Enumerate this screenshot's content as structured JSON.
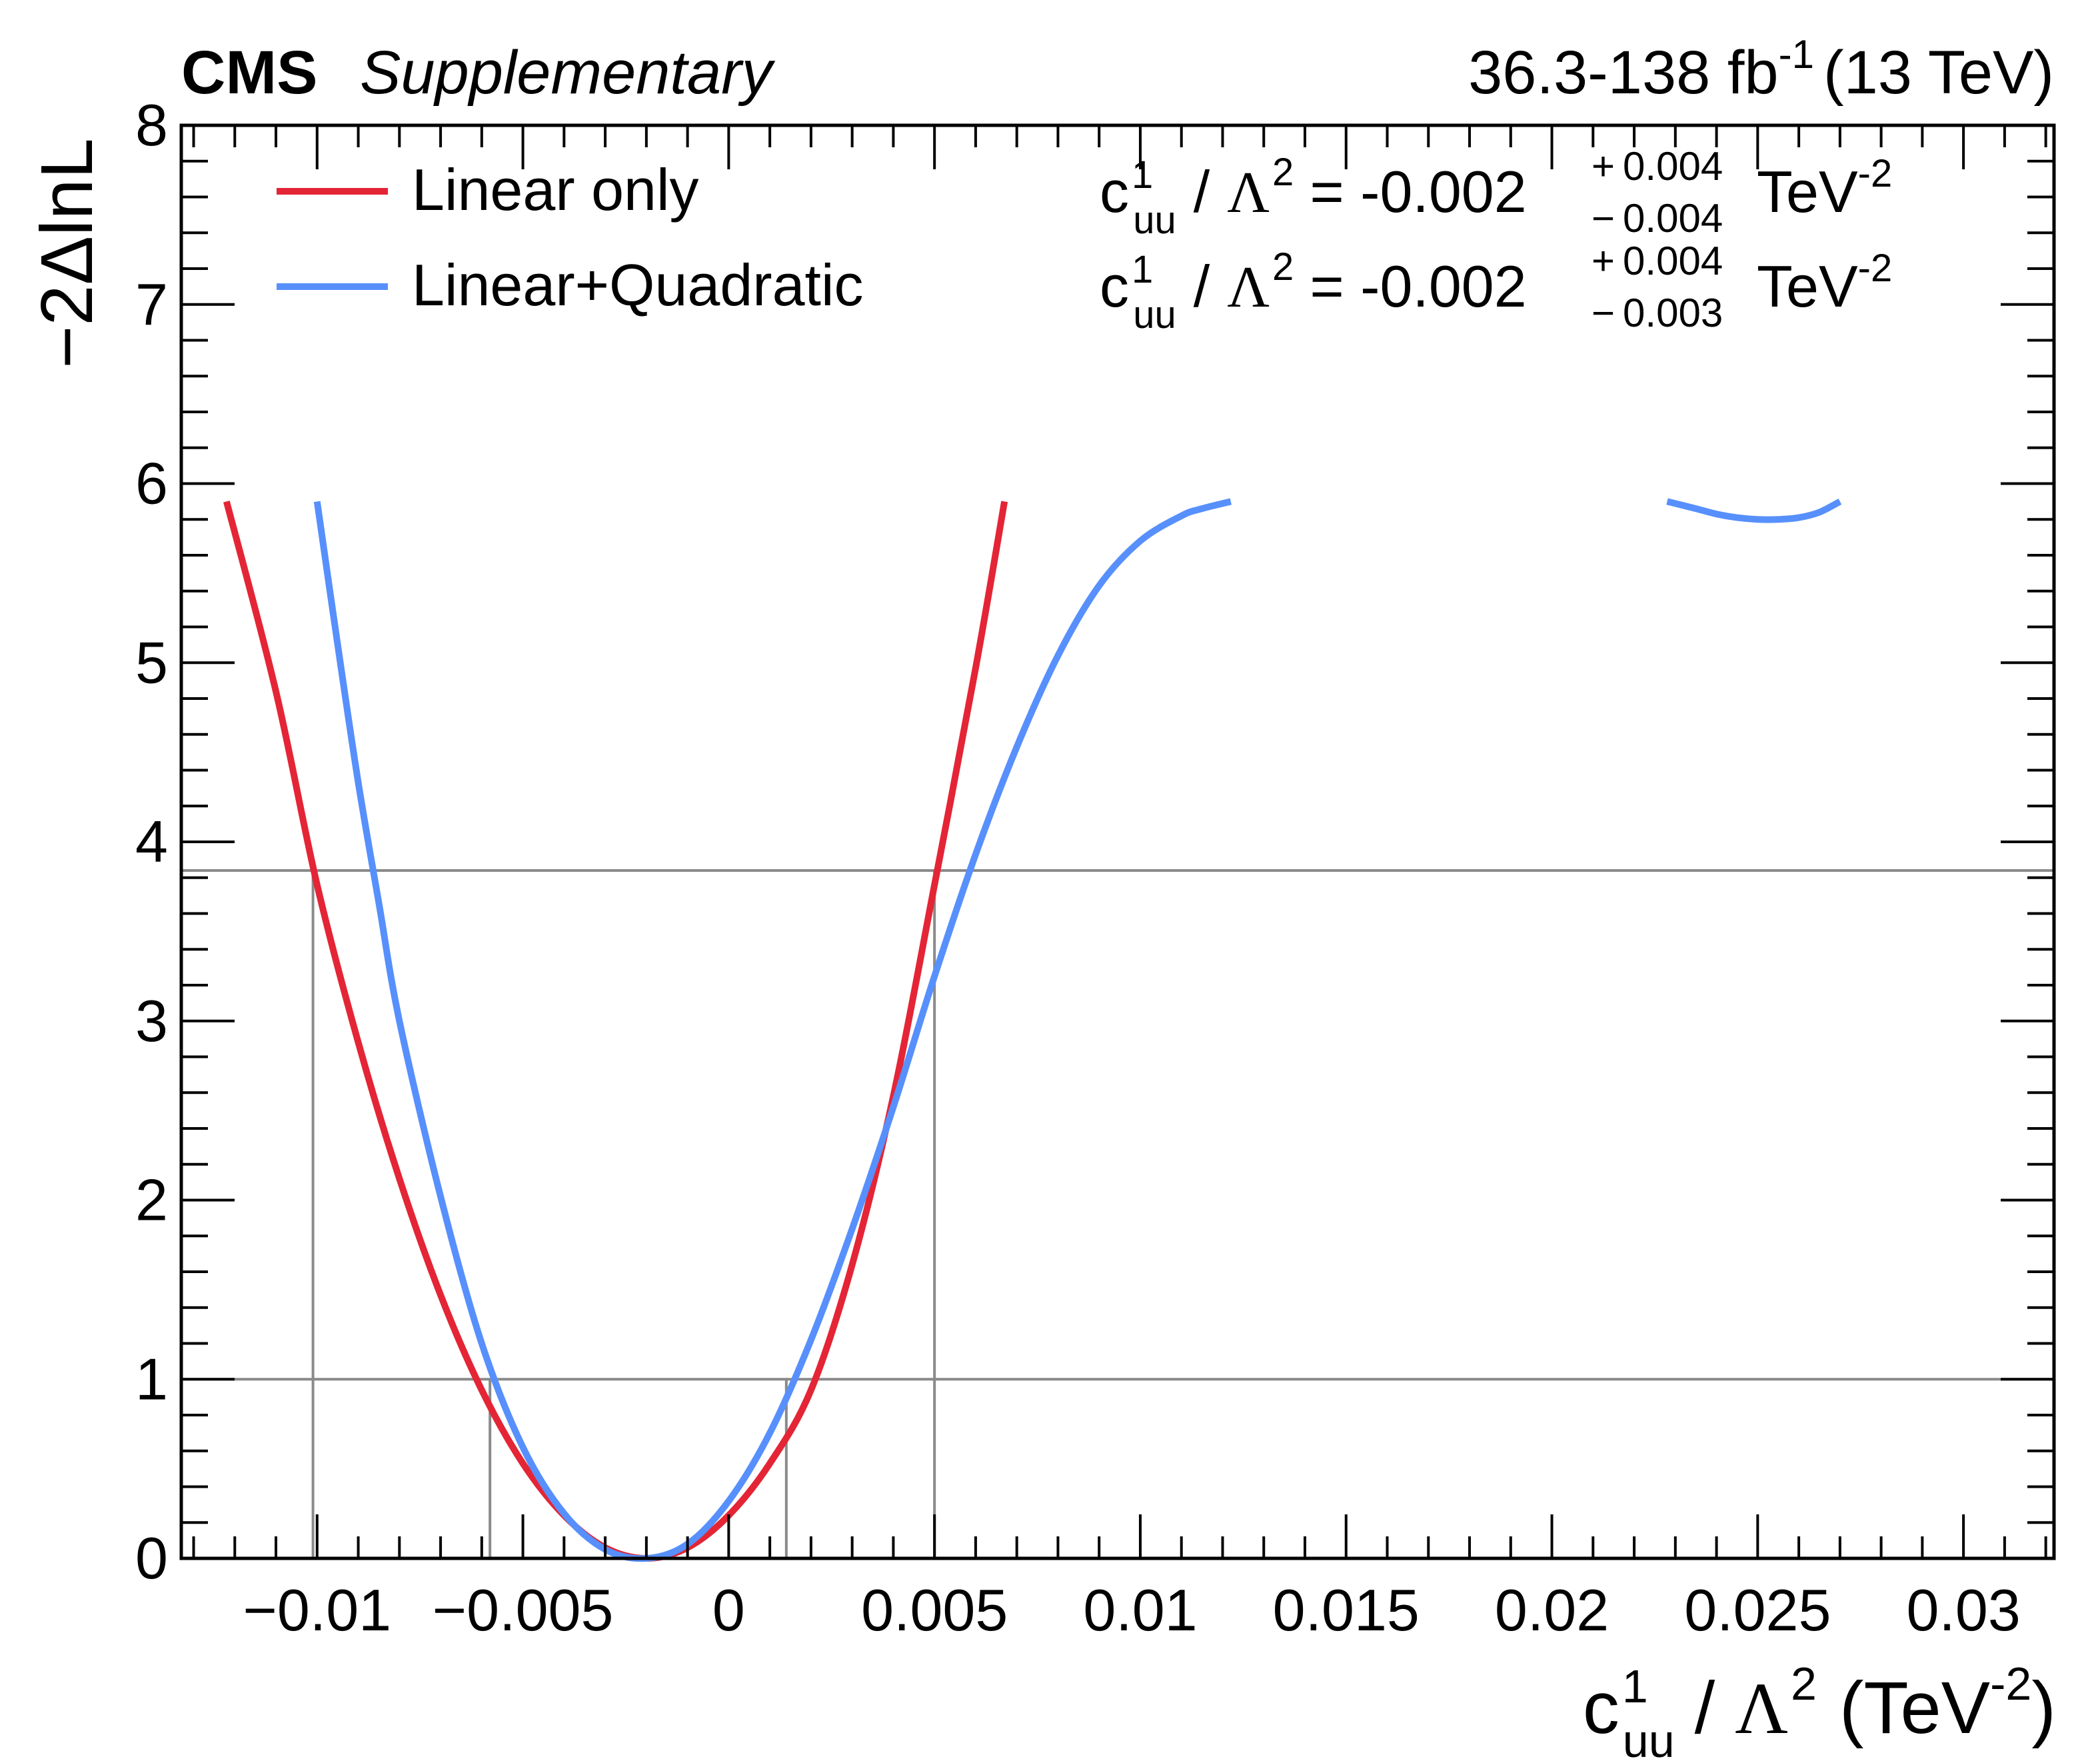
{
  "chart_data": {
    "type": "line",
    "header": {
      "experiment": "CMS",
      "tag": "Supplementary",
      "lumi_prefix": "36.3-138 fb",
      "lumi_exp": "-1",
      "energy": "(13 TeV)"
    },
    "ylabel": "−2ΔlnL",
    "xlabel": {
      "c": "c",
      "sup": "1",
      "sub": "uu",
      "slash": "/",
      "lambda": "Λ",
      "lambda_sup": "2",
      "unit_open": "(TeV",
      "unit_sup": "-2",
      "unit_close": ")"
    },
    "xlim": [
      -0.0133,
      0.0322
    ],
    "ylim": [
      0,
      8
    ],
    "x_ticks": [
      -0.01,
      -0.005,
      0,
      0.005,
      0.01,
      0.015,
      0.02,
      0.025,
      0.03
    ],
    "x_tick_labels": [
      "−0.01",
      "−0.005",
      "0",
      "0.005",
      "0.01",
      "0.015",
      "0.02",
      "0.025",
      "0.03"
    ],
    "y_ticks": [
      0,
      1,
      2,
      3,
      4,
      5,
      6,
      7,
      8
    ],
    "y_tick_labels": [
      "0",
      "1",
      "2",
      "3",
      "4",
      "5",
      "6",
      "7",
      "8"
    ],
    "reference_lines": [
      1,
      3.84
    ],
    "interval_markers": [
      {
        "x": -0.0101,
        "y": 3.84
      },
      {
        "x": -0.0058,
        "y": 1
      },
      {
        "x": 0.0014,
        "y": 1
      },
      {
        "x": 0.005,
        "y": 3.84
      }
    ],
    "series": [
      {
        "name": "Linear only",
        "color": "#e42536",
        "x": [
          -0.0122,
          -0.011,
          -0.01,
          -0.009,
          -0.008,
          -0.007,
          -0.006,
          -0.005,
          -0.004,
          -0.003,
          -0.002,
          -0.001,
          0.0,
          0.001,
          0.002,
          0.003,
          0.004,
          0.005,
          0.006,
          0.0067
        ],
        "y": [
          5.9,
          4.84,
          3.76,
          2.88,
          2.12,
          1.47,
          0.94,
          0.53,
          0.24,
          0.06,
          0.0,
          0.06,
          0.24,
          0.53,
          0.94,
          1.64,
          2.58,
          3.76,
          4.97,
          5.9
        ]
      },
      {
        "name": "Linear+Quadratic",
        "color": "#5790fc",
        "x": [
          -0.01,
          -0.0095,
          -0.009,
          -0.0085,
          -0.008,
          -0.007,
          -0.006,
          -0.005,
          -0.004,
          -0.003,
          -0.002,
          -0.001,
          0.0,
          0.001,
          0.002,
          0.003,
          0.004,
          0.005,
          0.006,
          0.007,
          0.008,
          0.009,
          0.01,
          0.011,
          0.0115,
          0.0122
        ],
        "y": [
          5.9,
          5.1,
          4.33,
          3.66,
          3.0,
          2.02,
          1.2,
          0.62,
          0.25,
          0.05,
          0.0,
          0.08,
          0.32,
          0.7,
          1.22,
          1.84,
          2.52,
          3.25,
          3.93,
          4.53,
          5.04,
          5.43,
          5.68,
          5.82,
          5.86,
          5.9
        ]
      },
      {
        "name": "Linear+Quadratic (second minimum)",
        "color": "#5790fc",
        "x": [
          0.0228,
          0.0235,
          0.024,
          0.0245,
          0.025,
          0.0255,
          0.026,
          0.0265,
          0.027
        ],
        "y": [
          5.9,
          5.86,
          5.83,
          5.81,
          5.8,
          5.8,
          5.81,
          5.84,
          5.9
        ]
      }
    ],
    "legend": [
      {
        "label": "Linear only",
        "color": "#e42536"
      },
      {
        "label": "Linear+Quadratic",
        "color": "#5790fc"
      }
    ],
    "annotations": [
      {
        "color": "#e42536",
        "c": "c",
        "sup": "1",
        "sub": "uu",
        "slash": "/",
        "lambda": "Λ",
        "lambda_sup": "2",
        "eq": "= -0.002",
        "up": "+ 0.004",
        "down": "− 0.004",
        "unit": "TeV",
        "unit_sup": "-2"
      },
      {
        "color": "#5790fc",
        "c": "c",
        "sup": "1",
        "sub": "uu",
        "slash": "/",
        "lambda": "Λ",
        "lambda_sup": "2",
        "eq": "= -0.002",
        "up": "+ 0.004",
        "down": "− 0.003",
        "unit": "TeV",
        "unit_sup": "-2"
      }
    ]
  }
}
